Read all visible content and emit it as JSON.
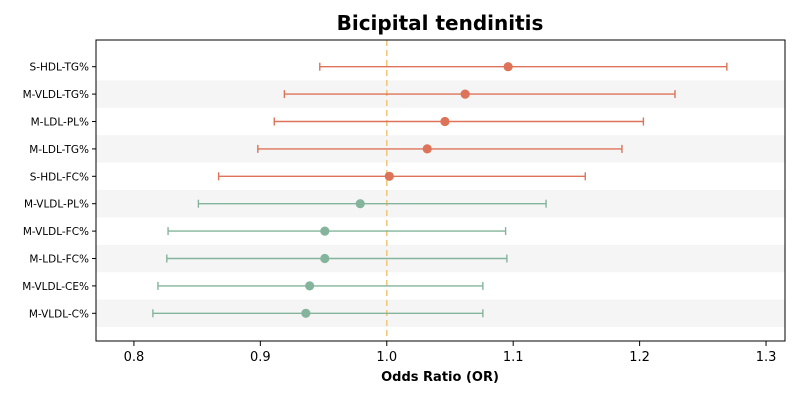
{
  "chart_data": {
    "type": "forest",
    "title": "Bicipital tendinitis",
    "xlabel": "Odds Ratio (OR)",
    "ylabel": "",
    "xlim": [
      0.77,
      1.315
    ],
    "xticks": [
      0.8,
      0.9,
      1.0,
      1.1,
      1.2,
      1.3
    ],
    "xtick_labels": [
      "0.8",
      "0.9",
      "1.0",
      "1.1",
      "1.2",
      "1.3"
    ],
    "reference_line": 1.0,
    "reference_color": "#f0c87a",
    "row_stripe_color": "#f5f5f5",
    "colors": {
      "above_one": "#dd7358",
      "below_one": "#84b59c"
    },
    "rows": [
      {
        "label": "S-HDL-TG%",
        "or": 1.096,
        "lower": 0.947,
        "upper": 1.269,
        "color": "#dd7358"
      },
      {
        "label": "M-VLDL-TG%",
        "or": 1.062,
        "lower": 0.919,
        "upper": 1.228,
        "color": "#dd7358"
      },
      {
        "label": "M-LDL-PL%",
        "or": 1.046,
        "lower": 0.911,
        "upper": 1.203,
        "color": "#dd7358"
      },
      {
        "label": "M-LDL-TG%",
        "or": 1.032,
        "lower": 0.898,
        "upper": 1.186,
        "color": "#dd7358"
      },
      {
        "label": "S-HDL-FC%",
        "or": 1.002,
        "lower": 0.867,
        "upper": 1.157,
        "color": "#dd7358"
      },
      {
        "label": "M-VLDL-PL%",
        "or": 0.979,
        "lower": 0.851,
        "upper": 1.126,
        "color": "#84b59c"
      },
      {
        "label": "M-VLDL-FC%",
        "or": 0.951,
        "lower": 0.827,
        "upper": 1.094,
        "color": "#84b59c"
      },
      {
        "label": "M-LDL-FC%",
        "or": 0.951,
        "lower": 0.826,
        "upper": 1.095,
        "color": "#84b59c"
      },
      {
        "label": "M-VLDL-CE%",
        "or": 0.939,
        "lower": 0.819,
        "upper": 1.076,
        "color": "#84b59c"
      },
      {
        "label": "M-VLDL-C%",
        "or": 0.936,
        "lower": 0.815,
        "upper": 1.076,
        "color": "#84b59c"
      }
    ]
  }
}
